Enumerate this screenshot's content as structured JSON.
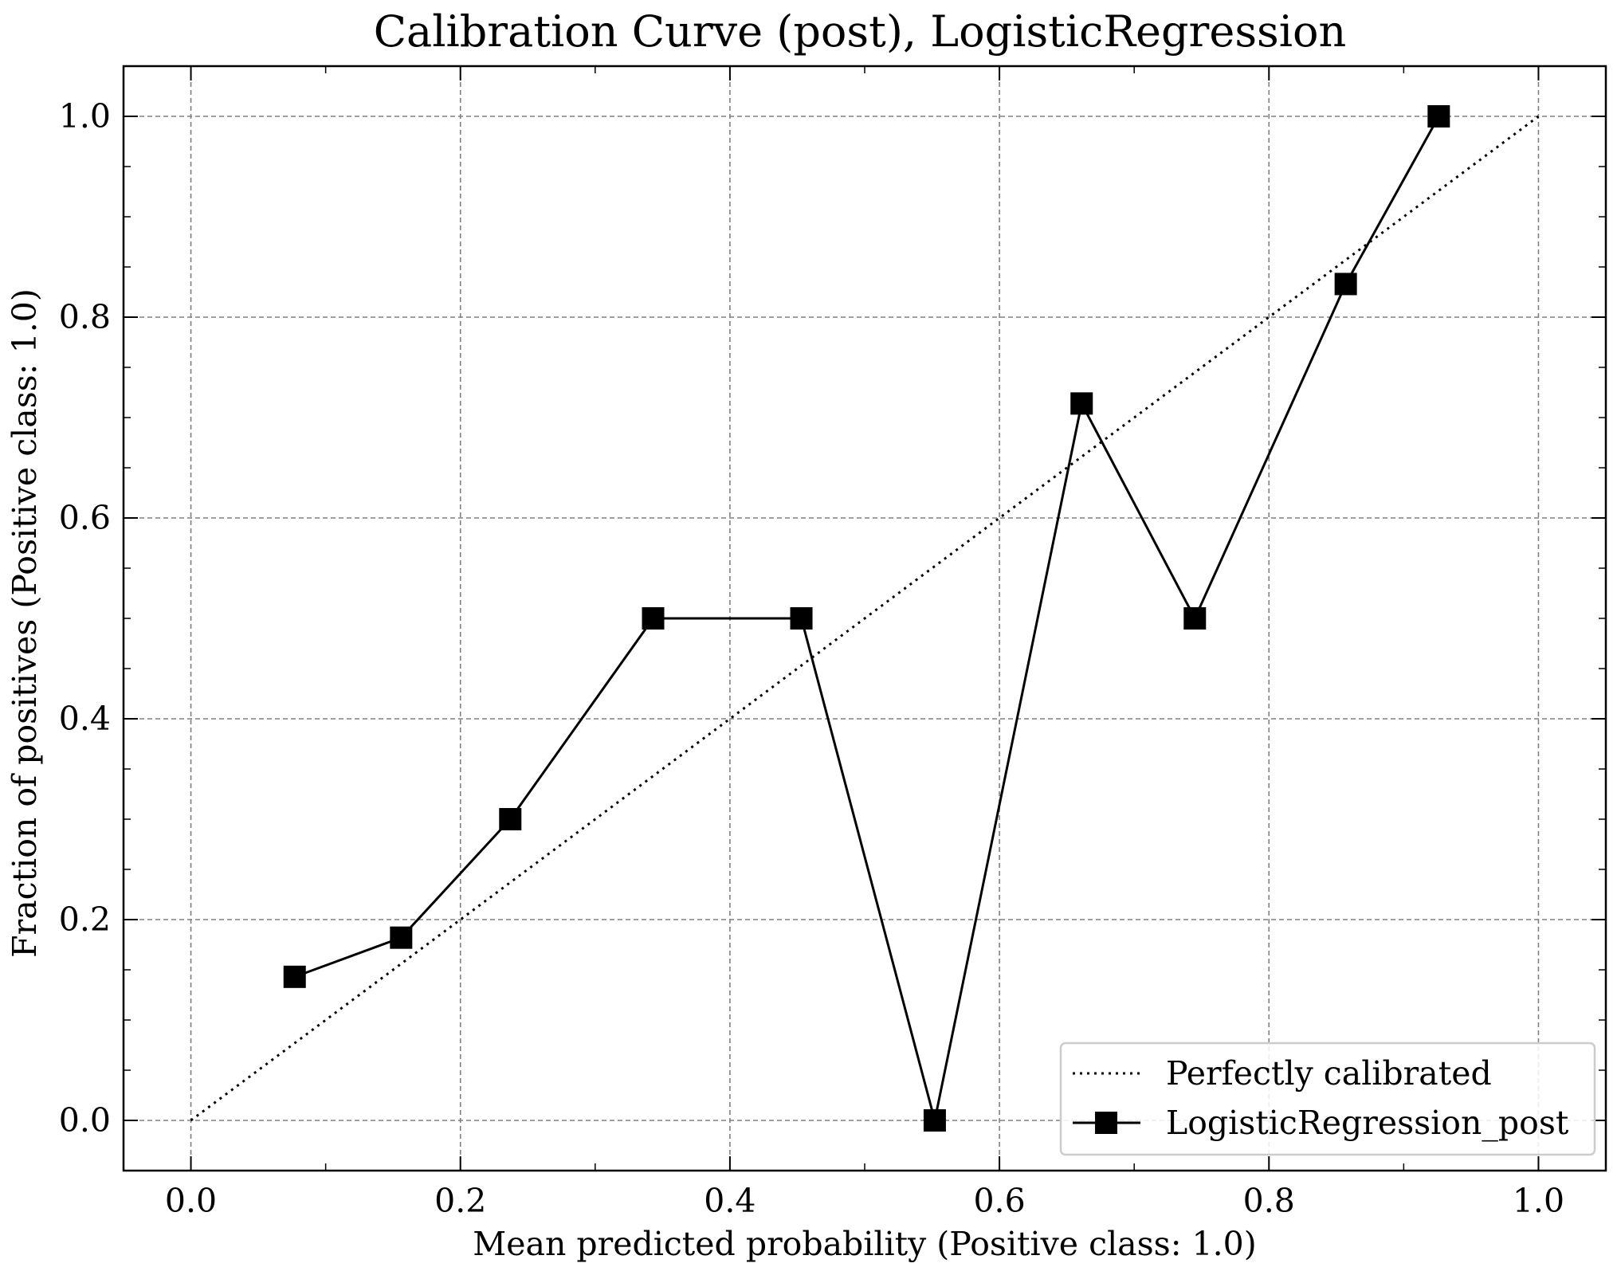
{
  "chart_data": {
    "type": "line",
    "title": "Calibration Curve (post), LogisticRegression",
    "xlabel": "Mean predicted probability (Positive class: 1.0)",
    "ylabel": "Fraction of positives (Positive class: 1.0)",
    "xlim": [
      -0.05,
      1.05
    ],
    "ylim": [
      -0.05,
      1.05
    ],
    "xticks": [
      "0.0",
      "0.2",
      "0.4",
      "0.6",
      "0.8",
      "1.0"
    ],
    "yticks": [
      "0.0",
      "0.2",
      "0.4",
      "0.6",
      "0.8",
      "1.0"
    ],
    "grid": true,
    "legend_position": "lower-right",
    "series": [
      {
        "name": "Perfectly calibrated",
        "style": "dotted",
        "marker": "none",
        "color": "#000000",
        "x": [
          0.0,
          1.0
        ],
        "y": [
          0.0,
          1.0
        ]
      },
      {
        "name": "LogisticRegression_post",
        "style": "solid",
        "marker": "square",
        "color": "#000000",
        "x": [
          0.077,
          0.156,
          0.237,
          0.343,
          0.453,
          0.552,
          0.661,
          0.745,
          0.857,
          0.926
        ],
        "y": [
          0.143,
          0.182,
          0.3,
          0.5,
          0.5,
          0.0,
          0.714,
          0.5,
          0.833,
          1.0
        ]
      }
    ]
  }
}
